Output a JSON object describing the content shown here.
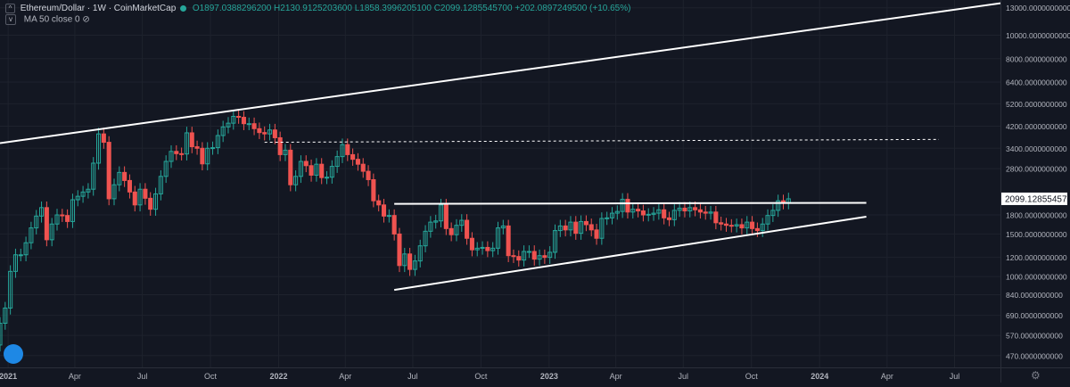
{
  "legend": {
    "symbol": "Ethereum/Dollar · 1W · CoinMarketCap",
    "open": "O1897.0388296200",
    "high": "H2130.9125203600",
    "low": "L1858.3996205100",
    "close": "C2099.1285545700",
    "change": "+202.0897249500 (+10.65%)"
  },
  "indicator": {
    "label": "MA 50 close 0"
  },
  "colors": {
    "background": "#131722",
    "up": "#26a69a",
    "down": "#ef5350",
    "lines": "#ffffff",
    "grid": "#1e222d",
    "axis_text": "#b2b5be"
  },
  "chart_data": {
    "type": "candlestick",
    "scale": "log",
    "interval": "1W",
    "x_tick_labels": [
      "2021",
      "Apr",
      "Jul",
      "Oct",
      "2022",
      "Apr",
      "Jul",
      "Oct",
      "2023",
      "Apr",
      "Jul",
      "Oct",
      "2024",
      "Apr",
      "Jul"
    ],
    "y_tick_labels": [
      "13000.0000000000",
      "10000.0000000000",
      "8000.0000000000",
      "6400.0000000000",
      "5200.0000000000",
      "4200.0000000000",
      "3400.0000000000",
      "2800.0000000000",
      "1800.0000000000",
      "1500.0000000000",
      "1200.0000000000",
      "1000.0000000000",
      "840.0000000000",
      "690.0000000000",
      "570.0000000000",
      "470.0000000000"
    ],
    "last_price_label": "2099.1285545700",
    "last_price": 2099.13,
    "ylim": [
      420,
      14000
    ],
    "x_start": "2020-12-21",
    "x_end": "2024-09-01",
    "weekly_closes": [
      {
        "d": "2020-12-21",
        "c": 640
      },
      {
        "d": "2020-12-28",
        "c": 740
      },
      {
        "d": "2021-01-04",
        "c": 1050
      },
      {
        "d": "2021-01-11",
        "c": 1230
      },
      {
        "d": "2021-01-18",
        "c": 1230
      },
      {
        "d": "2021-01-25",
        "c": 1380
      },
      {
        "d": "2021-02-01",
        "c": 1590
      },
      {
        "d": "2021-02-08",
        "c": 1780
      },
      {
        "d": "2021-02-15",
        "c": 1930
      },
      {
        "d": "2021-02-22",
        "c": 1420
      },
      {
        "d": "2021-03-01",
        "c": 1650
      },
      {
        "d": "2021-03-08",
        "c": 1800
      },
      {
        "d": "2021-03-15",
        "c": 1790
      },
      {
        "d": "2021-03-22",
        "c": 1690
      },
      {
        "d": "2021-03-29",
        "c": 2080
      },
      {
        "d": "2021-04-05",
        "c": 2150
      },
      {
        "d": "2021-04-12",
        "c": 2240
      },
      {
        "d": "2021-04-19",
        "c": 2300
      },
      {
        "d": "2021-04-26",
        "c": 2950
      },
      {
        "d": "2021-05-03",
        "c": 3900
      },
      {
        "d": "2021-05-10",
        "c": 3600
      },
      {
        "d": "2021-05-17",
        "c": 2100
      },
      {
        "d": "2021-05-24",
        "c": 2400
      },
      {
        "d": "2021-05-31",
        "c": 2700
      },
      {
        "d": "2021-06-07",
        "c": 2500
      },
      {
        "d": "2021-06-14",
        "c": 2240
      },
      {
        "d": "2021-06-21",
        "c": 1980
      },
      {
        "d": "2021-06-28",
        "c": 2300
      },
      {
        "d": "2021-07-05",
        "c": 2110
      },
      {
        "d": "2021-07-12",
        "c": 1900
      },
      {
        "d": "2021-07-19",
        "c": 2200
      },
      {
        "d": "2021-07-26",
        "c": 2600
      },
      {
        "d": "2021-08-02",
        "c": 3000
      },
      {
        "d": "2021-08-09",
        "c": 3300
      },
      {
        "d": "2021-08-16",
        "c": 3230
      },
      {
        "d": "2021-08-23",
        "c": 3220
      },
      {
        "d": "2021-08-30",
        "c": 3940
      },
      {
        "d": "2021-09-06",
        "c": 3450
      },
      {
        "d": "2021-09-13",
        "c": 3400
      },
      {
        "d": "2021-09-20",
        "c": 2930
      },
      {
        "d": "2021-09-27",
        "c": 3400
      },
      {
        "d": "2021-10-04",
        "c": 3420
      },
      {
        "d": "2021-10-11",
        "c": 3840
      },
      {
        "d": "2021-10-18",
        "c": 4170
      },
      {
        "d": "2021-10-25",
        "c": 4320
      },
      {
        "d": "2021-11-01",
        "c": 4610
      },
      {
        "d": "2021-11-08",
        "c": 4570
      },
      {
        "d": "2021-11-15",
        "c": 4300
      },
      {
        "d": "2021-11-22",
        "c": 4300
      },
      {
        "d": "2021-11-29",
        "c": 4100
      },
      {
        "d": "2021-12-06",
        "c": 3950
      },
      {
        "d": "2021-12-13",
        "c": 3900
      },
      {
        "d": "2021-12-20",
        "c": 4050
      },
      {
        "d": "2021-12-27",
        "c": 3760
      },
      {
        "d": "2022-01-03",
        "c": 3200
      },
      {
        "d": "2022-01-10",
        "c": 3340
      },
      {
        "d": "2022-01-17",
        "c": 2400
      },
      {
        "d": "2022-01-24",
        "c": 2600
      },
      {
        "d": "2022-01-31",
        "c": 3000
      },
      {
        "d": "2022-02-07",
        "c": 2880
      },
      {
        "d": "2022-02-14",
        "c": 2630
      },
      {
        "d": "2022-02-21",
        "c": 2920
      },
      {
        "d": "2022-02-28",
        "c": 2570
      },
      {
        "d": "2022-03-07",
        "c": 2580
      },
      {
        "d": "2022-03-14",
        "c": 2860
      },
      {
        "d": "2022-03-21",
        "c": 3140
      },
      {
        "d": "2022-03-28",
        "c": 3520
      },
      {
        "d": "2022-04-04",
        "c": 3200
      },
      {
        "d": "2022-04-11",
        "c": 3060
      },
      {
        "d": "2022-04-18",
        "c": 2920
      },
      {
        "d": "2022-04-25",
        "c": 2730
      },
      {
        "d": "2022-05-02",
        "c": 2520
      },
      {
        "d": "2022-05-09",
        "c": 2060
      },
      {
        "d": "2022-05-16",
        "c": 1980
      },
      {
        "d": "2022-05-23",
        "c": 1780
      },
      {
        "d": "2022-05-30",
        "c": 1790
      },
      {
        "d": "2022-06-06",
        "c": 1500
      },
      {
        "d": "2022-06-13",
        "c": 1110
      },
      {
        "d": "2022-06-20",
        "c": 1240
      },
      {
        "d": "2022-06-27",
        "c": 1070
      },
      {
        "d": "2022-07-04",
        "c": 1160
      },
      {
        "d": "2022-07-11",
        "c": 1340
      },
      {
        "d": "2022-07-18",
        "c": 1540
      },
      {
        "d": "2022-07-25",
        "c": 1680
      },
      {
        "d": "2022-08-01",
        "c": 1700
      },
      {
        "d": "2022-08-08",
        "c": 1980
      },
      {
        "d": "2022-08-15",
        "c": 1580
      },
      {
        "d": "2022-08-22",
        "c": 1490
      },
      {
        "d": "2022-08-29",
        "c": 1630
      },
      {
        "d": "2022-09-05",
        "c": 1710
      },
      {
        "d": "2022-09-12",
        "c": 1440
      },
      {
        "d": "2022-09-19",
        "c": 1290
      },
      {
        "d": "2022-09-26",
        "c": 1310
      },
      {
        "d": "2022-10-03",
        "c": 1320
      },
      {
        "d": "2022-10-10",
        "c": 1280
      },
      {
        "d": "2022-10-17",
        "c": 1310
      },
      {
        "d": "2022-10-24",
        "c": 1590
      },
      {
        "d": "2022-10-31",
        "c": 1620
      },
      {
        "d": "2022-11-07",
        "c": 1220
      },
      {
        "d": "2022-11-14",
        "c": 1210
      },
      {
        "d": "2022-11-21",
        "c": 1170
      },
      {
        "d": "2022-11-28",
        "c": 1270
      },
      {
        "d": "2022-12-05",
        "c": 1270
      },
      {
        "d": "2022-12-12",
        "c": 1180
      },
      {
        "d": "2022-12-19",
        "c": 1220
      },
      {
        "d": "2022-12-26",
        "c": 1200
      },
      {
        "d": "2023-01-02",
        "c": 1260
      },
      {
        "d": "2023-01-09",
        "c": 1550
      },
      {
        "d": "2023-01-16",
        "c": 1620
      },
      {
        "d": "2023-01-23",
        "c": 1560
      },
      {
        "d": "2023-01-30",
        "c": 1680
      },
      {
        "d": "2023-02-06",
        "c": 1510
      },
      {
        "d": "2023-02-13",
        "c": 1690
      },
      {
        "d": "2023-02-20",
        "c": 1640
      },
      {
        "d": "2023-02-27",
        "c": 1560
      },
      {
        "d": "2023-03-06",
        "c": 1440
      },
      {
        "d": "2023-03-13",
        "c": 1740
      },
      {
        "d": "2023-03-20",
        "c": 1750
      },
      {
        "d": "2023-03-27",
        "c": 1830
      },
      {
        "d": "2023-04-03",
        "c": 1860
      },
      {
        "d": "2023-04-10",
        "c": 2090
      },
      {
        "d": "2023-04-17",
        "c": 1850
      },
      {
        "d": "2023-04-24",
        "c": 1900
      },
      {
        "d": "2023-05-01",
        "c": 1870
      },
      {
        "d": "2023-05-08",
        "c": 1800
      },
      {
        "d": "2023-05-15",
        "c": 1810
      },
      {
        "d": "2023-05-22",
        "c": 1830
      },
      {
        "d": "2023-05-29",
        "c": 1890
      },
      {
        "d": "2023-06-05",
        "c": 1750
      },
      {
        "d": "2023-06-12",
        "c": 1720
      },
      {
        "d": "2023-06-19",
        "c": 1880
      },
      {
        "d": "2023-06-26",
        "c": 1920
      },
      {
        "d": "2023-07-03",
        "c": 1870
      },
      {
        "d": "2023-07-10",
        "c": 1930
      },
      {
        "d": "2023-07-17",
        "c": 1890
      },
      {
        "d": "2023-07-24",
        "c": 1850
      },
      {
        "d": "2023-07-31",
        "c": 1830
      },
      {
        "d": "2023-08-07",
        "c": 1850
      },
      {
        "d": "2023-08-14",
        "c": 1670
      },
      {
        "d": "2023-08-21",
        "c": 1650
      },
      {
        "d": "2023-08-28",
        "c": 1630
      },
      {
        "d": "2023-09-04",
        "c": 1620
      },
      {
        "d": "2023-09-11",
        "c": 1640
      },
      {
        "d": "2023-09-18",
        "c": 1590
      },
      {
        "d": "2023-09-25",
        "c": 1680
      },
      {
        "d": "2023-10-02",
        "c": 1580
      },
      {
        "d": "2023-10-09",
        "c": 1550
      },
      {
        "d": "2023-10-16",
        "c": 1650
      },
      {
        "d": "2023-10-23",
        "c": 1790
      },
      {
        "d": "2023-10-30",
        "c": 1880
      },
      {
        "d": "2023-11-06",
        "c": 2060
      },
      {
        "d": "2023-11-13",
        "c": 2020
      },
      {
        "d": "2023-11-20",
        "c": 2099
      }
    ],
    "trendlines": [
      {
        "name": "upper-channel",
        "p1": {
          "d": "2020-12-21",
          "v": 3570
        },
        "p2": {
          "d": "2024-09-01",
          "v": 13570
        }
      },
      {
        "name": "triangle-top",
        "p1": {
          "d": "2022-06-06",
          "v": 2000
        },
        "p2": {
          "d": "2024-03-04",
          "v": 2020
        }
      },
      {
        "name": "triangle-bottom",
        "p1": {
          "d": "2022-06-06",
          "v": 880
        },
        "p2": {
          "d": "2024-03-04",
          "v": 1770
        }
      },
      {
        "name": "dashed-resistance",
        "p1": {
          "d": "2021-12-13",
          "v": 3600
        },
        "p2": {
          "d": "2024-06-10",
          "v": 3700
        },
        "dashed": true
      }
    ]
  }
}
